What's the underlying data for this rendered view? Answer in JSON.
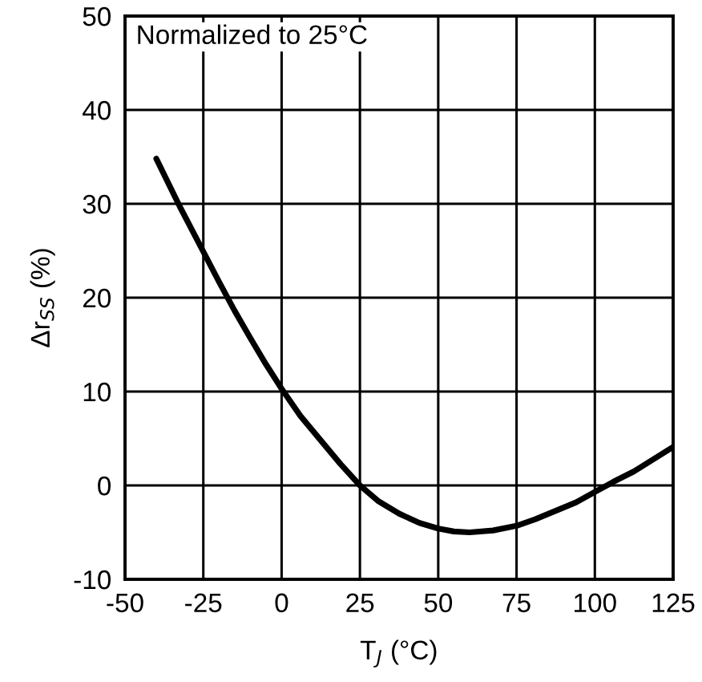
{
  "chart_data": {
    "type": "line",
    "xlabel": "T$_{J}$ (°C)",
    "ylabel": "Δr$_{SS}$ (%)",
    "annotations": [
      "Normalized to 25°C"
    ],
    "x": [
      -40,
      -32.5,
      -25,
      -20,
      -15,
      -10,
      -5,
      0,
      6,
      12.5,
      18.75,
      25,
      31,
      37.5,
      44,
      50,
      55,
      60,
      67.5,
      75,
      81,
      87.5,
      94,
      100,
      106,
      112.5,
      118.75,
      125
    ],
    "series": [
      {
        "color": "#000000",
        "values": [
          34.8,
          29.7,
          24.9,
          21.7,
          18.6,
          15.7,
          12.9,
          10.3,
          7.4,
          4.8,
          2.3,
          0,
          -1.7,
          -3,
          -4,
          -4.6,
          -4.9,
          -5,
          -4.8,
          -4.3,
          -3.6,
          -2.7,
          -1.8,
          -0.7,
          0.4,
          1.5,
          2.8,
          4.1
        ]
      }
    ],
    "xlim": [
      -50,
      125
    ],
    "xticks": [
      -50,
      -25,
      0,
      25,
      50,
      75,
      100,
      125
    ],
    "ylim": [
      -10,
      50
    ],
    "yticks": [
      -10,
      0,
      10,
      20,
      30,
      40,
      50
    ],
    "grid": true,
    "legend": false
  }
}
